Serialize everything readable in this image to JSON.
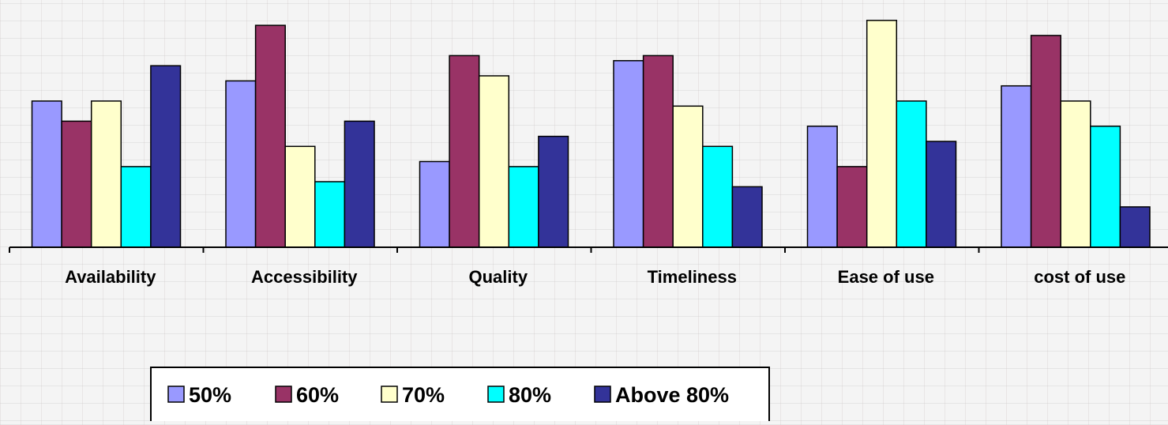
{
  "chart_data": {
    "type": "bar",
    "categories": [
      "Availability",
      "Accessibility",
      "Quality",
      "Timeliness",
      "Ease of use",
      "cost of use"
    ],
    "series": [
      {
        "name": "50%",
        "color": "#9999ff",
        "values": [
          29,
          33,
          17,
          37,
          24,
          32
        ]
      },
      {
        "name": "60%",
        "color": "#993366",
        "values": [
          25,
          44,
          38,
          38,
          16,
          42
        ]
      },
      {
        "name": "70%",
        "color": "#ffffcc",
        "values": [
          29,
          20,
          34,
          28,
          45,
          29
        ]
      },
      {
        "name": "80%",
        "color": "#00ffff",
        "values": [
          16,
          13,
          16,
          20,
          29,
          24
        ]
      },
      {
        "name": "Above 80%",
        "color": "#333399",
        "values": [
          36,
          25,
          22,
          12,
          21,
          8
        ]
      }
    ],
    "ylim": [
      0,
      47
    ],
    "legend_position": "bottom",
    "grid": false
  }
}
